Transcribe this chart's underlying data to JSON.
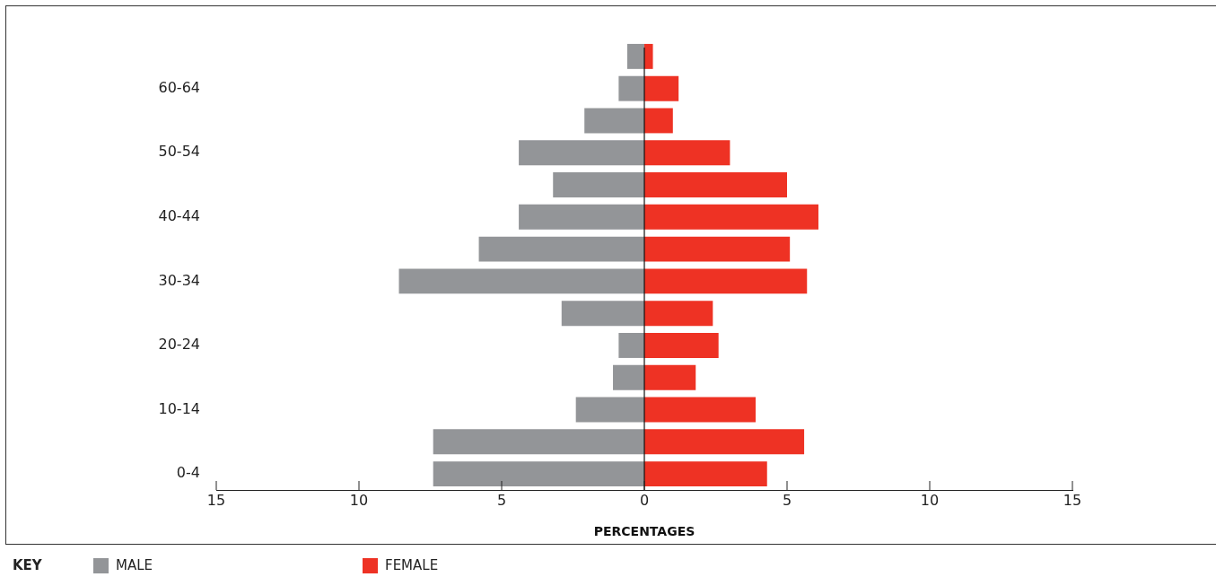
{
  "chart_data": {
    "type": "bar",
    "orientation": "horizontal",
    "stacked": true,
    "categories": [
      null,
      "60-64",
      null,
      "50-54",
      null,
      "40-44",
      null,
      "30-34",
      null,
      "20-24",
      null,
      "10-14",
      null,
      "0-4"
    ],
    "series": [
      {
        "name": "MALE",
        "color": "#939598",
        "values": [
          -0.6,
          -0.9,
          -2.1,
          -4.4,
          -3.2,
          -4.4,
          -5.8,
          -8.6,
          -2.9,
          -0.9,
          -1.1,
          -2.4,
          -7.4,
          -7.4
        ]
      },
      {
        "name": "FEMALE",
        "color": "#ee3224",
        "values": [
          0.3,
          1.2,
          1.0,
          3.0,
          5.0,
          6.1,
          5.1,
          5.7,
          2.4,
          2.6,
          1.8,
          3.9,
          5.6,
          4.3
        ]
      }
    ],
    "xlim": [
      -15,
      15
    ],
    "xticks": [
      {
        "value": -15,
        "label": "15"
      },
      {
        "value": -10,
        "label": "10"
      },
      {
        "value": -5,
        "label": "5"
      },
      0,
      5,
      10,
      15
    ],
    "ref_lines": [
      {
        "axis": "x",
        "value": 0,
        "color": "#111111"
      }
    ],
    "xlabel": "PERCENTAGES",
    "legend_title": "KEY",
    "legend": "bottom",
    "grid": false
  }
}
